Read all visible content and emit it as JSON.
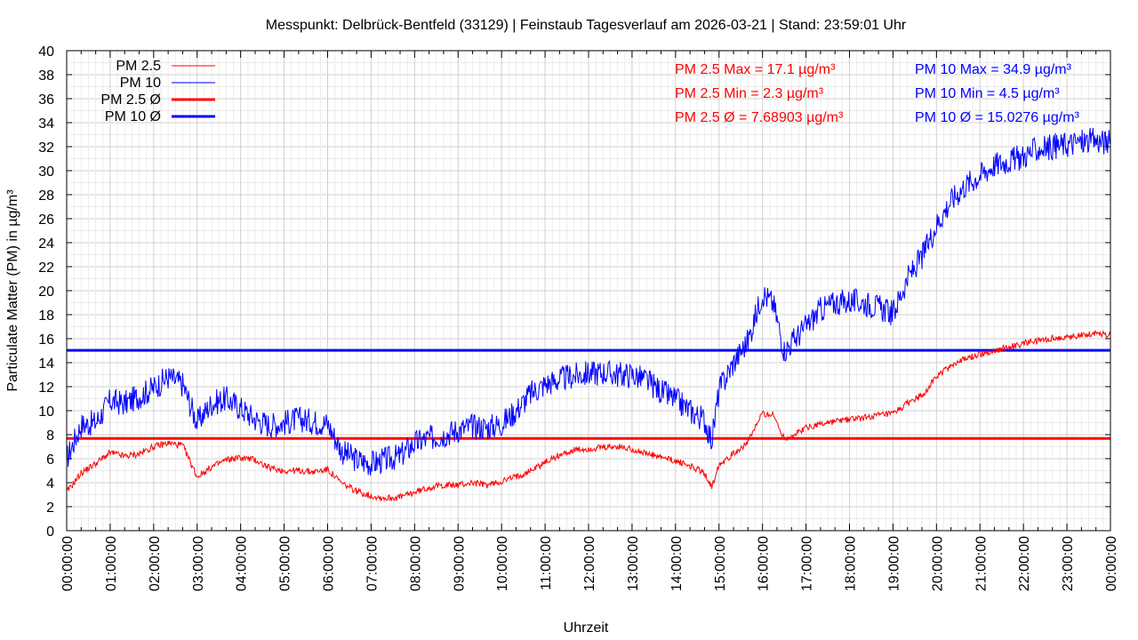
{
  "chart_data": {
    "type": "line",
    "title": "Messpunkt: Delbrück-Bentfeld (33129) | Feinstaub Tagesverlauf am 2026-03-21 | Stand: 23:59:01 Uhr",
    "xlabel": "Uhrzeit",
    "ylabel": "Particulate Matter (PM) in µg/m³",
    "ylim": [
      0,
      40
    ],
    "yticks": [
      0,
      2,
      4,
      6,
      8,
      10,
      12,
      14,
      16,
      18,
      20,
      22,
      24,
      26,
      28,
      30,
      32,
      34,
      36,
      38,
      40
    ],
    "xlim": [
      "00:00:00",
      "24:00:00"
    ],
    "xticks": [
      "00:00:00",
      "01:00:00",
      "02:00:00",
      "03:00:00",
      "04:00:00",
      "05:00:00",
      "06:00:00",
      "07:00:00",
      "08:00:00",
      "09:00:00",
      "10:00:00",
      "11:00:00",
      "12:00:00",
      "13:00:00",
      "14:00:00",
      "15:00:00",
      "16:00:00",
      "17:00:00",
      "18:00:00",
      "19:00:00",
      "20:00:00",
      "21:00:00",
      "22:00:00",
      "23:00:00",
      "00:00:00"
    ],
    "grid": true,
    "legend_position": "top-left",
    "series": [
      {
        "name": "PM 2.5",
        "color": "#ff0000",
        "x": [
          "00:00",
          "00:20",
          "00:40",
          "01:00",
          "01:20",
          "01:40",
          "02:00",
          "02:20",
          "02:40",
          "03:00",
          "03:20",
          "03:40",
          "04:00",
          "04:20",
          "04:40",
          "05:00",
          "05:20",
          "05:40",
          "06:00",
          "06:20",
          "06:40",
          "07:00",
          "07:20",
          "07:40",
          "08:00",
          "08:20",
          "08:40",
          "09:00",
          "09:20",
          "09:40",
          "10:00",
          "10:20",
          "10:40",
          "11:00",
          "11:20",
          "11:40",
          "12:00",
          "12:20",
          "12:40",
          "13:00",
          "13:20",
          "13:40",
          "14:00",
          "14:20",
          "14:40",
          "14:50",
          "15:00",
          "15:20",
          "15:40",
          "16:00",
          "16:15",
          "16:30",
          "16:45",
          "17:00",
          "17:20",
          "17:40",
          "18:00",
          "18:20",
          "18:40",
          "19:00",
          "19:20",
          "19:40",
          "20:00",
          "20:20",
          "20:40",
          "21:00",
          "21:20",
          "21:40",
          "22:00",
          "22:20",
          "22:40",
          "23:00",
          "23:20",
          "23:40",
          "24:00"
        ],
        "values": [
          3.2,
          4.8,
          5.6,
          6.5,
          6.2,
          6.4,
          7.0,
          7.3,
          7.1,
          4.5,
          5.3,
          5.9,
          6.1,
          5.9,
          5.2,
          5.0,
          5.0,
          4.9,
          5.1,
          3.9,
          3.3,
          2.9,
          2.7,
          2.8,
          3.2,
          3.6,
          3.8,
          3.8,
          4.0,
          3.8,
          4.1,
          4.5,
          5.0,
          5.7,
          6.3,
          6.7,
          6.8,
          6.9,
          7.0,
          6.8,
          6.4,
          6.1,
          5.8,
          5.4,
          4.8,
          3.6,
          5.6,
          6.4,
          7.4,
          9.8,
          9.6,
          7.7,
          8.0,
          8.6,
          8.9,
          9.1,
          9.3,
          9.4,
          9.6,
          9.7,
          10.6,
          11.3,
          12.8,
          13.8,
          14.3,
          14.7,
          15.0,
          15.3,
          15.6,
          15.8,
          16.0,
          16.1,
          16.3,
          16.5,
          16.3
        ]
      },
      {
        "name": "PM 10",
        "color": "#0000ff",
        "x": [
          "00:00",
          "00:20",
          "00:40",
          "01:00",
          "01:20",
          "01:40",
          "02:00",
          "02:20",
          "02:40",
          "03:00",
          "03:20",
          "03:40",
          "04:00",
          "04:20",
          "04:40",
          "05:00",
          "05:20",
          "05:40",
          "06:00",
          "06:20",
          "06:40",
          "07:00",
          "07:20",
          "07:40",
          "08:00",
          "08:20",
          "08:40",
          "09:00",
          "09:20",
          "09:40",
          "10:00",
          "10:20",
          "10:40",
          "11:00",
          "11:20",
          "11:40",
          "12:00",
          "12:20",
          "12:40",
          "13:00",
          "13:20",
          "13:40",
          "14:00",
          "14:20",
          "14:40",
          "14:50",
          "15:00",
          "15:20",
          "15:40",
          "16:00",
          "16:15",
          "16:30",
          "16:45",
          "17:00",
          "17:20",
          "17:40",
          "18:00",
          "18:20",
          "18:40",
          "19:00",
          "19:20",
          "19:40",
          "20:00",
          "20:20",
          "20:40",
          "21:00",
          "21:20",
          "21:40",
          "22:00",
          "22:20",
          "22:40",
          "23:00",
          "23:20",
          "23:40",
          "24:00"
        ],
        "values": [
          6.0,
          8.8,
          9.0,
          10.8,
          10.6,
          11.2,
          11.9,
          12.8,
          12.2,
          9.0,
          10.6,
          11.0,
          10.2,
          9.3,
          8.8,
          9.0,
          9.3,
          9.1,
          8.9,
          6.6,
          5.9,
          5.6,
          5.9,
          6.2,
          7.3,
          7.7,
          8.0,
          8.4,
          8.7,
          8.6,
          8.9,
          10.0,
          11.4,
          12.2,
          12.6,
          12.9,
          13.1,
          13.2,
          13.0,
          13.0,
          12.5,
          11.6,
          10.9,
          10.0,
          9.2,
          7.5,
          11.7,
          14.0,
          15.8,
          19.8,
          18.9,
          15.0,
          16.0,
          17.0,
          18.4,
          19.0,
          19.1,
          19.0,
          18.6,
          18.1,
          21.0,
          22.8,
          25.5,
          27.5,
          28.8,
          29.6,
          30.5,
          30.8,
          31.2,
          31.8,
          32.0,
          32.2,
          32.4,
          32.5,
          32.3
        ]
      },
      {
        "name": "PM 2.5 Ø",
        "color": "#ff0000",
        "constant": 7.68903
      },
      {
        "name": "PM 10 Ø",
        "color": "#0000ff",
        "constant": 15.0276
      }
    ],
    "annotations": {
      "pm25_max": "PM 2.5 Max = 17.1 µg/m³",
      "pm25_min": "PM 2.5 Min = 2.3 µg/m³",
      "pm25_avg": "PM 2.5 Ø = 7.68903 µg/m³",
      "pm10_max": "PM 10 Max = 34.9 µg/m³",
      "pm10_min": "PM 10 Min = 4.5 µg/m³",
      "pm10_avg": "PM 10 Ø = 15.0276 µg/m³"
    }
  }
}
